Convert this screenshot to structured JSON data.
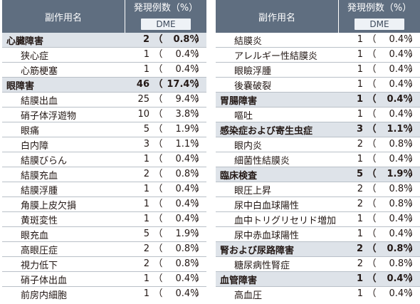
{
  "header": {
    "name_label": "副作用名",
    "count_label": "発現例数（%）",
    "sub_label": "DME"
  },
  "left": [
    {
      "type": "category",
      "name": "心臓障害",
      "count": "2",
      "pct": "0.8%"
    },
    {
      "type": "sub",
      "name": "狭心症",
      "count": "1",
      "pct": "0.4%"
    },
    {
      "type": "sub",
      "name": "心筋梗塞",
      "count": "1",
      "pct": "0.4%"
    },
    {
      "type": "category",
      "name": "眼障害",
      "count": "46",
      "pct": "17.4%"
    },
    {
      "type": "sub",
      "name": "結膜出血",
      "count": "25",
      "pct": "9.4%"
    },
    {
      "type": "sub",
      "name": "硝子体浮遊物",
      "count": "10",
      "pct": "3.8%"
    },
    {
      "type": "sub",
      "name": "眼痛",
      "count": "5",
      "pct": "1.9%"
    },
    {
      "type": "sub",
      "name": "白内障",
      "count": "3",
      "pct": "1.1%"
    },
    {
      "type": "sub",
      "name": "結膜びらん",
      "count": "1",
      "pct": "0.4%"
    },
    {
      "type": "sub",
      "name": "結膜充血",
      "count": "2",
      "pct": "0.8%"
    },
    {
      "type": "sub",
      "name": "結膜浮腫",
      "count": "1",
      "pct": "0.4%"
    },
    {
      "type": "sub",
      "name": "角膜上皮欠損",
      "count": "1",
      "pct": "0.4%"
    },
    {
      "type": "sub",
      "name": "黄斑変性",
      "count": "1",
      "pct": "0.4%"
    },
    {
      "type": "sub",
      "name": "眼充血",
      "count": "5",
      "pct": "1.9%"
    },
    {
      "type": "sub",
      "name": "高眼圧症",
      "count": "2",
      "pct": "0.8%"
    },
    {
      "type": "sub",
      "name": "視力低下",
      "count": "2",
      "pct": "0.8%"
    },
    {
      "type": "sub",
      "name": "硝子体出血",
      "count": "1",
      "pct": "0.4%"
    },
    {
      "type": "sub",
      "name": "前房内細胞",
      "count": "1",
      "pct": "0.4%"
    }
  ],
  "right": [
    {
      "type": "sub",
      "name": "結膜炎",
      "count": "1",
      "pct": "0.4%"
    },
    {
      "type": "sub",
      "name": "アレルギー性結膜炎",
      "count": "1",
      "pct": "0.4%"
    },
    {
      "type": "sub",
      "name": "眼瞼浮腫",
      "count": "1",
      "pct": "0.4%"
    },
    {
      "type": "sub",
      "name": "後嚢破裂",
      "count": "1",
      "pct": "0.4%"
    },
    {
      "type": "category",
      "name": "胃腸障害",
      "count": "1",
      "pct": "0.4%"
    },
    {
      "type": "sub",
      "name": "嘔吐",
      "count": "1",
      "pct": "0.4%"
    },
    {
      "type": "category",
      "name": "感染症および寄生虫症",
      "count": "3",
      "pct": "1.1%"
    },
    {
      "type": "sub",
      "name": "眼内炎",
      "count": "2",
      "pct": "0.8%"
    },
    {
      "type": "sub",
      "name": "細菌性結膜炎",
      "count": "1",
      "pct": "0.4%"
    },
    {
      "type": "category",
      "name": "臨床検査",
      "count": "5",
      "pct": "1.9%"
    },
    {
      "type": "sub",
      "name": "眼圧上昇",
      "count": "2",
      "pct": "0.8%"
    },
    {
      "type": "sub",
      "name": "尿中白血球陽性",
      "count": "2",
      "pct": "0.8%"
    },
    {
      "type": "sub",
      "name": "血中トリグリセリド増加",
      "count": "1",
      "pct": "0.4%"
    },
    {
      "type": "sub",
      "name": "尿中赤血球陽性",
      "count": "1",
      "pct": "0.4%"
    },
    {
      "type": "category",
      "name": "腎および尿路障害",
      "count": "2",
      "pct": "0.8%"
    },
    {
      "type": "sub",
      "name": "糖尿病性腎症",
      "count": "2",
      "pct": "0.8%"
    },
    {
      "type": "category",
      "name": "血管障害",
      "count": "1",
      "pct": "0.4%"
    },
    {
      "type": "sub",
      "name": "高血圧",
      "count": "1",
      "pct": "0.4%"
    }
  ]
}
